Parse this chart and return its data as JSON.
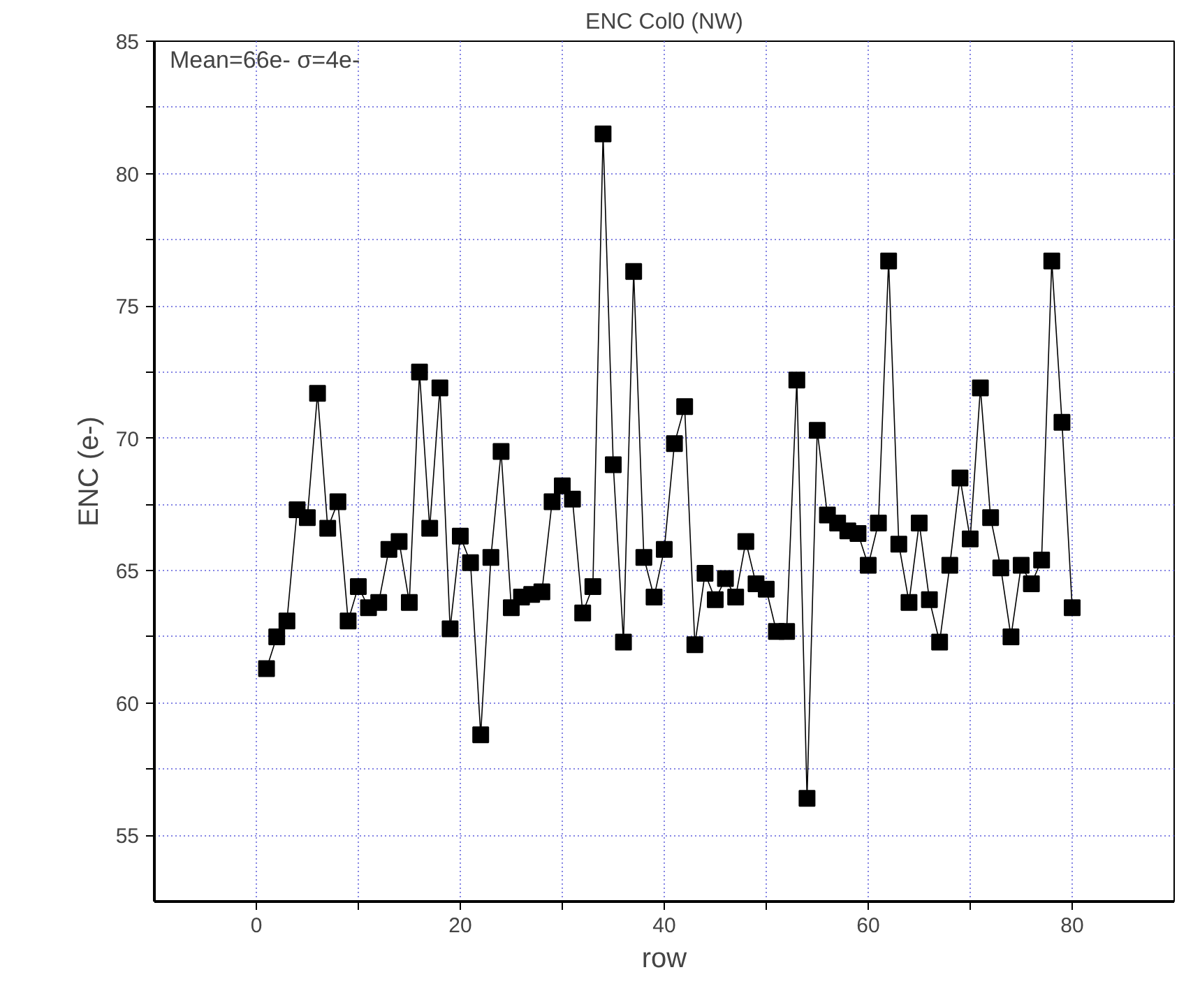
{
  "chart_data": {
    "type": "line",
    "title": "ENC Col0 (NW)",
    "xlabel": "row",
    "ylabel": "ENC (e-)",
    "annotations": [
      "Mean=66e- σ=4e-"
    ],
    "x": [
      1,
      2,
      3,
      4,
      5,
      6,
      7,
      8,
      9,
      10,
      11,
      12,
      13,
      14,
      15,
      16,
      17,
      18,
      19,
      20,
      21,
      22,
      23,
      24,
      25,
      26,
      27,
      28,
      29,
      30,
      31,
      32,
      33,
      34,
      35,
      36,
      37,
      38,
      39,
      40,
      41,
      42,
      43,
      44,
      45,
      46,
      47,
      48,
      49,
      50,
      51,
      52,
      53,
      54,
      55,
      56,
      57,
      58,
      59,
      60,
      61,
      62,
      63,
      64,
      65,
      66,
      67,
      68,
      69,
      70,
      71,
      72,
      73,
      74,
      75,
      76,
      77,
      78,
      79,
      80
    ],
    "series": [
      {
        "color": "#000000",
        "values": [
          61.3,
          62.5,
          63.1,
          67.3,
          67.0,
          71.7,
          66.6,
          67.6,
          63.1,
          64.4,
          63.6,
          63.8,
          65.8,
          66.1,
          63.8,
          72.5,
          66.6,
          71.9,
          62.8,
          66.3,
          65.3,
          58.8,
          65.5,
          69.5,
          63.6,
          64.0,
          64.1,
          64.2,
          67.6,
          68.2,
          67.7,
          63.4,
          64.4,
          81.5,
          69.0,
          62.3,
          76.3,
          65.5,
          64.0,
          65.8,
          69.8,
          71.2,
          62.2,
          64.9,
          63.9,
          64.7,
          64.0,
          66.1,
          64.5,
          64.3,
          62.7,
          62.7,
          72.2,
          56.4,
          70.3,
          67.1,
          66.8,
          66.5,
          66.4,
          65.2,
          66.8,
          76.7,
          66.0,
          63.8,
          66.8,
          63.9,
          62.3,
          65.2,
          68.5,
          66.2,
          71.9,
          67.0,
          65.1,
          62.5,
          65.2,
          64.5,
          65.4,
          76.7,
          70.6,
          63.6
        ]
      }
    ],
    "xlim": [
      -10,
      90
    ],
    "xticks": [
      0,
      {
        "value": 10,
        "label": null
      },
      20,
      {
        "value": 30,
        "label": null
      },
      40,
      {
        "value": 50,
        "label": null
      },
      60,
      {
        "value": 70,
        "label": null
      },
      80
    ],
    "ylim": [
      52.5,
      85
    ],
    "yticks": [
      55,
      {
        "value": 57.5,
        "label": null
      },
      60,
      {
        "value": 62.5,
        "label": null
      },
      65,
      {
        "value": 67.5,
        "label": null
      },
      70,
      {
        "value": 72.5,
        "label": null
      },
      75,
      {
        "value": 77.5,
        "label": null
      },
      80,
      {
        "value": 82.5,
        "label": null
      },
      85
    ],
    "grid": true,
    "marker": "square",
    "line_style": "solid"
  }
}
